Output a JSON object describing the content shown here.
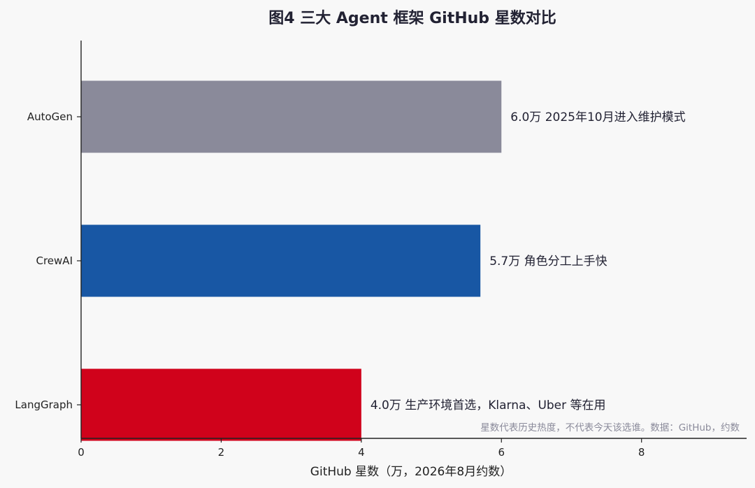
{
  "chart_data": {
    "type": "bar",
    "orientation": "horizontal",
    "title": "图4 三大 Agent 框架 GitHub 星数对比",
    "xlabel": "GitHub 星数（万，2026年8月约数）",
    "ylabel": "",
    "xlim": [
      0,
      9.5
    ],
    "xticks": [
      "0",
      "2",
      "4",
      "6",
      "8"
    ],
    "xtick_values": [
      0,
      2,
      4,
      6,
      8
    ],
    "categories": [
      "AutoGen",
      "CrewAI",
      "LangGraph"
    ],
    "values": [
      6.0,
      5.7,
      4.0
    ],
    "colors": [
      "#8a8a9a",
      "#1857a4",
      "#d0021b"
    ],
    "annotations": [
      "6.0万  2025年10月进入维护模式",
      "5.7万  角色分工上手快",
      "4.0万  生产环境首选，Klarna、Uber 等在用"
    ],
    "note": "星数代表历史热度，不代表今天该选谁。数据：GitHub，约数",
    "grid": false,
    "legend": "none"
  }
}
